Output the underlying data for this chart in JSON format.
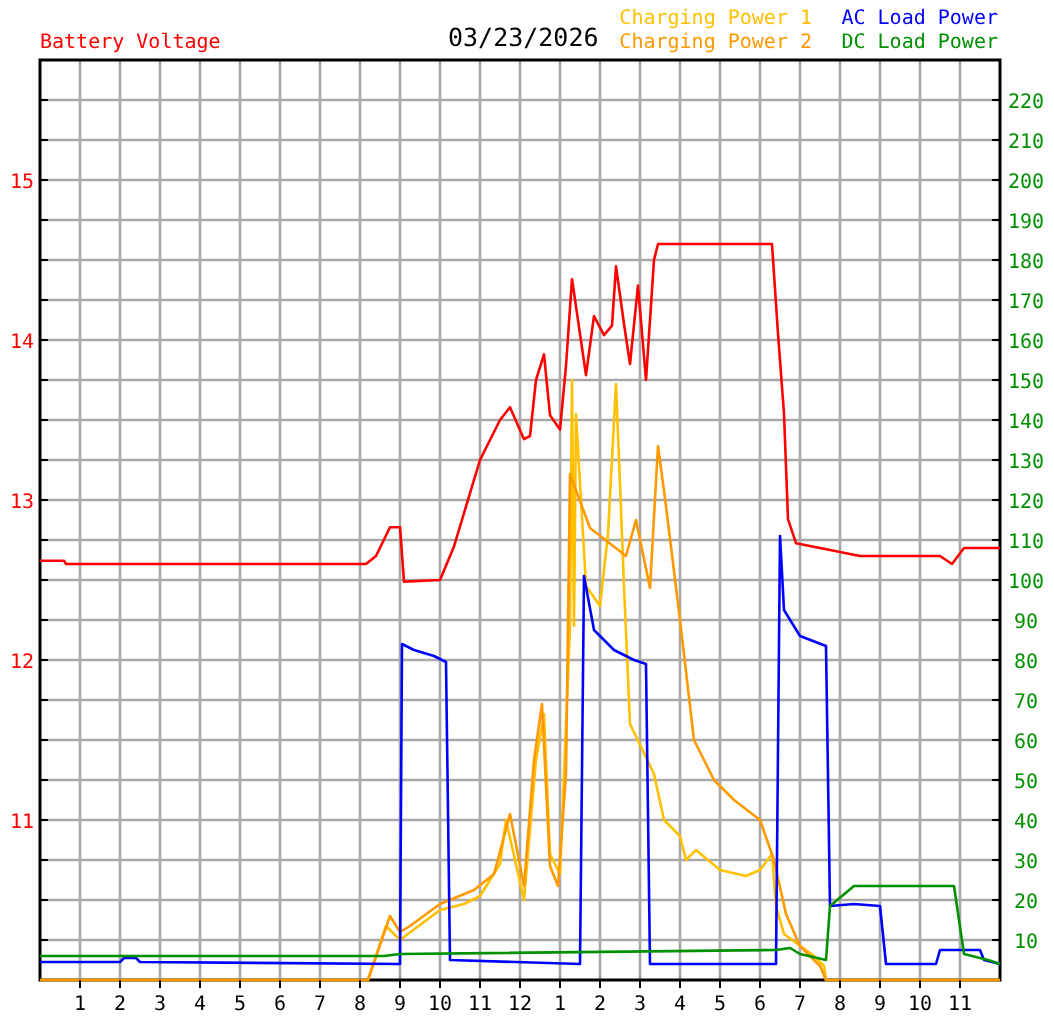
{
  "chart_data": {
    "type": "line",
    "title": "03/23/2026",
    "xlim": [
      "2026-03-23T00:00",
      "2026-03-24T00:00"
    ],
    "xticks": [
      {
        "value": "2026-03-23T01:00",
        "label": "1"
      },
      {
        "value": "2026-03-23T02:00",
        "label": "2"
      },
      {
        "value": "2026-03-23T03:00",
        "label": "3"
      },
      {
        "value": "2026-03-23T04:00",
        "label": "4"
      },
      {
        "value": "2026-03-23T05:00",
        "label": "5"
      },
      {
        "value": "2026-03-23T06:00",
        "label": "6"
      },
      {
        "value": "2026-03-23T07:00",
        "label": "7"
      },
      {
        "value": "2026-03-23T08:00",
        "label": "8"
      },
      {
        "value": "2026-03-23T09:00",
        "label": "9"
      },
      {
        "value": "2026-03-23T10:00",
        "label": "10"
      },
      {
        "value": "2026-03-23T11:00",
        "label": "11"
      },
      {
        "value": "2026-03-23T12:00",
        "label": "12"
      },
      {
        "value": "2026-03-23T13:00",
        "label": "1"
      },
      {
        "value": "2026-03-23T14:00",
        "label": "2"
      },
      {
        "value": "2026-03-23T15:00",
        "label": "3"
      },
      {
        "value": "2026-03-23T16:00",
        "label": "4"
      },
      {
        "value": "2026-03-23T17:00",
        "label": "5"
      },
      {
        "value": "2026-03-23T18:00",
        "label": "6"
      },
      {
        "value": "2026-03-23T19:00",
        "label": "7"
      },
      {
        "value": "2026-03-23T20:00",
        "label": "8"
      },
      {
        "value": "2026-03-23T21:00",
        "label": "9"
      },
      {
        "value": "2026-03-23T22:00",
        "label": "10"
      },
      {
        "value": "2026-03-23T23:00",
        "label": "11"
      }
    ],
    "ylim": [
      10,
      15.75
    ],
    "yticks": [
      {
        "value": 10.25,
        "label": null
      },
      {
        "value": 10.5,
        "label": null
      },
      {
        "value": 10.75,
        "label": null
      },
      11,
      {
        "value": 11.25,
        "label": null
      },
      {
        "value": 11.5,
        "label": null
      },
      {
        "value": 11.75,
        "label": null
      },
      12,
      {
        "value": 12.25,
        "label": null
      },
      {
        "value": 12.5,
        "label": null
      },
      {
        "value": 12.75,
        "label": null
      },
      13,
      {
        "value": 13.25,
        "label": null
      },
      {
        "value": 13.5,
        "label": null
      },
      {
        "value": 13.75,
        "label": null
      },
      14,
      {
        "value": 14.25,
        "label": null
      },
      {
        "value": 14.5,
        "label": null
      },
      {
        "value": 14.75,
        "label": null
      },
      15,
      {
        "value": 15.25,
        "label": null
      },
      {
        "value": 15.5,
        "label": null
      }
    ],
    "y2lim": [
      0,
      230
    ],
    "y2ticks": [
      10,
      20,
      30,
      40,
      50,
      60,
      70,
      80,
      90,
      100,
      110,
      120,
      130,
      140,
      150,
      160,
      170,
      180,
      190,
      200,
      210,
      220
    ],
    "grid": true,
    "legend": "top right",
    "marker": "none",
    "line_style": "solid",
    "series": [
      {
        "name": "Battery Voltage",
        "color": "#ff0000",
        "x": [
          "2026-03-23T00:00",
          "2026-03-23T00:36",
          "2026-03-23T00:39",
          "2026-03-23T08:09",
          "2026-03-23T08:24",
          "2026-03-23T08:45",
          "2026-03-23T09:00",
          "2026-03-23T09:06",
          "2026-03-23T10:00",
          "2026-03-23T10:21",
          "2026-03-23T11:00",
          "2026-03-23T11:30",
          "2026-03-23T11:45",
          "2026-03-23T12:06",
          "2026-03-23T12:15",
          "2026-03-23T12:24",
          "2026-03-23T12:36",
          "2026-03-23T12:45",
          "2026-03-23T13:00",
          "2026-03-23T13:09",
          "2026-03-23T13:18",
          "2026-03-23T13:24",
          "2026-03-23T13:39",
          "2026-03-23T13:51",
          "2026-03-23T14:06",
          "2026-03-23T14:18",
          "2026-03-23T14:24",
          "2026-03-23T14:36",
          "2026-03-23T14:45",
          "2026-03-23T14:57",
          "2026-03-23T15:09",
          "2026-03-23T15:21",
          "2026-03-23T15:27",
          "2026-03-23T18:18",
          "2026-03-23T18:27",
          "2026-03-23T18:36",
          "2026-03-23T18:42",
          "2026-03-23T18:54",
          "2026-03-23T19:30",
          "2026-03-23T20:30",
          "2026-03-23T22:30",
          "2026-03-23T22:48",
          "2026-03-23T23:06",
          "2026-03-24T00:00"
        ],
        "values": [
          12.62,
          12.62,
          12.6,
          12.6,
          12.65,
          12.83,
          12.83,
          12.49,
          12.5,
          12.71,
          13.25,
          13.5,
          13.58,
          13.38,
          13.4,
          13.75,
          13.91,
          13.53,
          13.44,
          13.84,
          14.38,
          14.21,
          13.78,
          14.15,
          14.03,
          14.09,
          14.46,
          14.1,
          13.85,
          14.34,
          13.75,
          14.5,
          14.6,
          14.6,
          14.04,
          13.54,
          12.88,
          12.73,
          12.7,
          12.65,
          12.65,
          12.6,
          12.7,
          12.7
        ]
      },
      {
        "name": "Charging Power 1",
        "color": "#ffc000",
        "axis": "y2",
        "x": [
          "2026-03-23T00:00",
          "2026-03-23T08:12",
          "2026-03-23T08:39",
          "2026-03-23T09:00",
          "2026-03-23T10:00",
          "2026-03-23T10:36",
          "2026-03-23T11:00",
          "2026-03-23T11:30",
          "2026-03-23T11:39",
          "2026-03-23T12:06",
          "2026-03-23T12:24",
          "2026-03-23T12:36",
          "2026-03-23T12:45",
          "2026-03-23T13:00",
          "2026-03-23T13:15",
          "2026-03-23T13:18",
          "2026-03-23T13:21",
          "2026-03-23T13:24",
          "2026-03-23T13:39",
          "2026-03-23T14:00",
          "2026-03-23T14:12",
          "2026-03-23T14:24",
          "2026-03-23T14:36",
          "2026-03-23T14:45",
          "2026-03-23T15:21",
          "2026-03-23T15:36",
          "2026-03-23T16:00",
          "2026-03-23T16:09",
          "2026-03-23T16:24",
          "2026-03-23T17:00",
          "2026-03-23T17:39",
          "2026-03-23T18:00",
          "2026-03-23T18:18",
          "2026-03-23T18:24",
          "2026-03-23T18:36",
          "2026-03-23T19:21",
          "2026-03-23T19:36",
          "2026-03-23T19:39",
          "2026-03-24T00:00"
        ],
        "values": [
          0,
          0,
          13.5,
          10,
          17.5,
          19,
          21,
          29,
          40,
          20,
          55,
          66.5,
          31.5,
          26.5,
          88.5,
          150,
          88.5,
          141.5,
          98.5,
          93.5,
          111.5,
          149,
          98.5,
          64,
          51.5,
          40,
          36,
          30,
          32.5,
          27.5,
          26,
          27.5,
          31.5,
          18.5,
          11.5,
          6,
          3.5,
          0,
          0
        ]
      },
      {
        "name": "Charging Power 2",
        "color": "#ff9900",
        "axis": "y2",
        "x": [
          "2026-03-23T00:00",
          "2026-03-23T08:12",
          "2026-03-23T08:45",
          "2026-03-23T09:00",
          "2026-03-23T09:15",
          "2026-03-23T10:00",
          "2026-03-23T10:51",
          "2026-03-23T11:21",
          "2026-03-23T11:45",
          "2026-03-23T12:06",
          "2026-03-23T12:21",
          "2026-03-23T12:33",
          "2026-03-23T12:45",
          "2026-03-23T12:57",
          "2026-03-23T13:09",
          "2026-03-23T13:15",
          "2026-03-23T13:45",
          "2026-03-23T14:39",
          "2026-03-23T14:54",
          "2026-03-23T15:15",
          "2026-03-23T15:27",
          "2026-03-23T15:39",
          "2026-03-23T16:00",
          "2026-03-23T16:21",
          "2026-03-23T16:51",
          "2026-03-23T17:21",
          "2026-03-23T18:00",
          "2026-03-23T18:21",
          "2026-03-23T18:39",
          "2026-03-23T19:00",
          "2026-03-23T19:30",
          "2026-03-23T19:39",
          "2026-03-24T00:00"
        ],
        "values": [
          0,
          0,
          16,
          12,
          13.5,
          19,
          22.5,
          26.5,
          41.5,
          23.5,
          55,
          69,
          28.5,
          23.5,
          51.5,
          126.5,
          113,
          106,
          115,
          98,
          133.5,
          118.5,
          90,
          60,
          50,
          45,
          40,
          30,
          16.5,
          8.5,
          3.5,
          0,
          0
        ]
      },
      {
        "name": "AC Load Power",
        "color": "#0000ff",
        "axis": "y2",
        "x": [
          "2026-03-23T00:00",
          "2026-03-23T02:00",
          "2026-03-23T02:06",
          "2026-03-23T02:24",
          "2026-03-23T02:30",
          "2026-03-23T09:00",
          "2026-03-23T09:03",
          "2026-03-23T09:21",
          "2026-03-23T09:51",
          "2026-03-23T10:09",
          "2026-03-23T10:15",
          "2026-03-23T13:30",
          "2026-03-23T13:36",
          "2026-03-23T13:51",
          "2026-03-23T14:21",
          "2026-03-23T14:51",
          "2026-03-23T15:09",
          "2026-03-23T15:15",
          "2026-03-23T18:24",
          "2026-03-23T18:30",
          "2026-03-23T18:36",
          "2026-03-23T19:00",
          "2026-03-23T19:39",
          "2026-03-23T19:45",
          "2026-03-23T20:21",
          "2026-03-23T21:00",
          "2026-03-23T21:09",
          "2026-03-23T22:24",
          "2026-03-23T22:30",
          "2026-03-23T23:30",
          "2026-03-23T23:36",
          "2026-03-24T00:00"
        ],
        "values": [
          4.5,
          4.5,
          5.5,
          5.5,
          4.5,
          4,
          84,
          82.5,
          81,
          79.5,
          5,
          4,
          101,
          87.5,
          82.5,
          80,
          79,
          4,
          4,
          111,
          92.5,
          86,
          83.5,
          18.5,
          19,
          18.5,
          4,
          4,
          7.5,
          7.5,
          5,
          4
        ]
      },
      {
        "name": "DC Load Power",
        "color": "#009000",
        "axis": "y2",
        "x": [
          "2026-03-23T00:00",
          "2026-03-23T08:36",
          "2026-03-23T09:00",
          "2026-03-23T18:24",
          "2026-03-23T18:45",
          "2026-03-23T19:00",
          "2026-03-23T19:39",
          "2026-03-23T19:45",
          "2026-03-23T20:21",
          "2026-03-23T22:51",
          "2026-03-23T23:06",
          "2026-03-23T23:42",
          "2026-03-24T00:00"
        ],
        "values": [
          6,
          6,
          6.5,
          7.5,
          8,
          6.5,
          5,
          18.5,
          23.5,
          23.5,
          6.5,
          5,
          4
        ]
      }
    ]
  }
}
